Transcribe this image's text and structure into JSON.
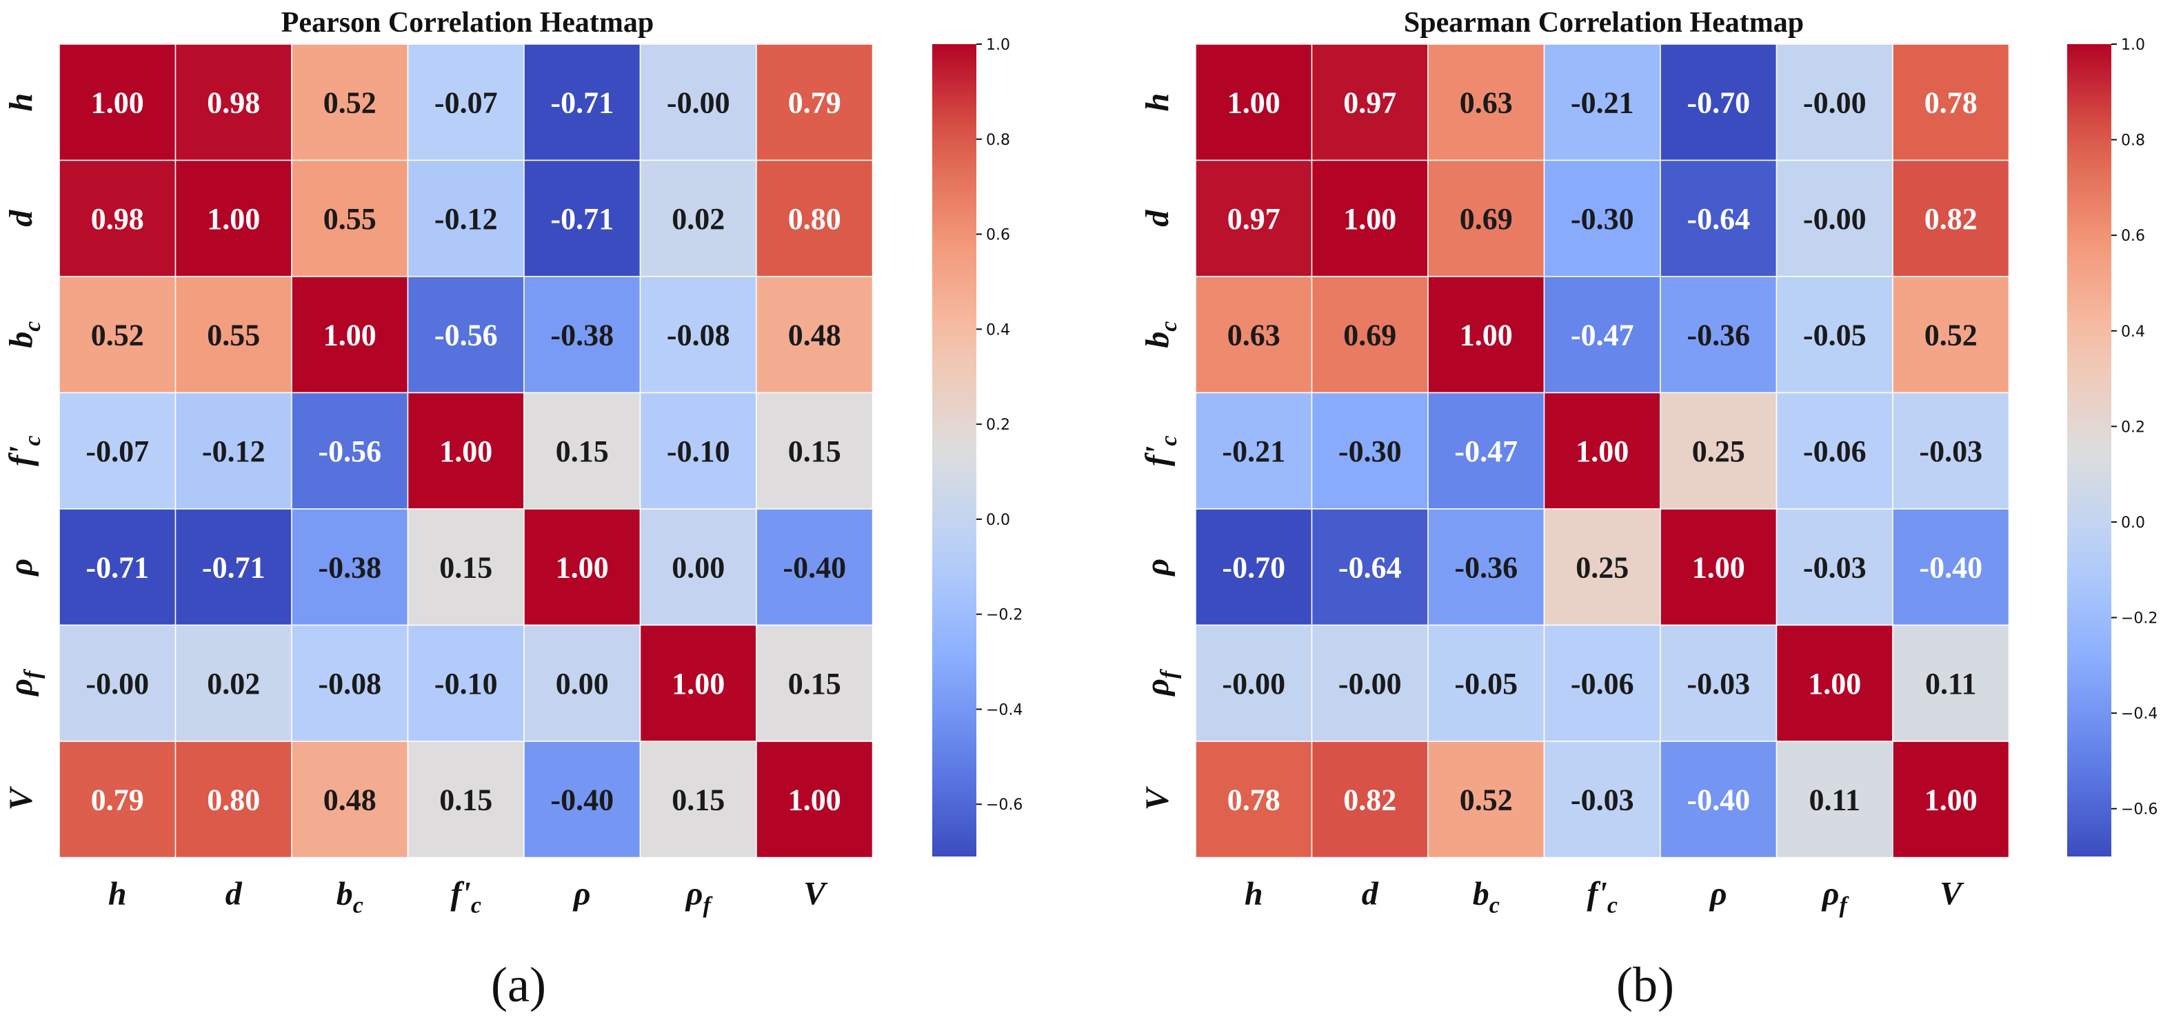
{
  "chart_data": [
    {
      "type": "heatmap",
      "title": "Pearson Correlation Heatmap",
      "caption": "(a)",
      "labels": [
        {
          "base": "h",
          "sub": ""
        },
        {
          "base": "d",
          "sub": ""
        },
        {
          "base": "b",
          "sub": "c"
        },
        {
          "base": "f'",
          "sub": "c"
        },
        {
          "base": "ρ",
          "sub": ""
        },
        {
          "base": "ρ",
          "sub": "f"
        },
        {
          "base": "V",
          "sub": ""
        }
      ],
      "cell_labels": [
        [
          "1.00",
          "0.98",
          "0.52",
          "-0.07",
          "-0.71",
          "-0.00",
          "0.79"
        ],
        [
          "0.98",
          "1.00",
          "0.55",
          "-0.12",
          "-0.71",
          "0.02",
          "0.80"
        ],
        [
          "0.52",
          "0.55",
          "1.00",
          "-0.56",
          "-0.38",
          "-0.08",
          "0.48"
        ],
        [
          "-0.07",
          "-0.12",
          "-0.56",
          "1.00",
          "0.15",
          "-0.10",
          "0.15"
        ],
        [
          "-0.71",
          "-0.71",
          "-0.38",
          "0.15",
          "1.00",
          "0.00",
          "-0.40"
        ],
        [
          "-0.00",
          "0.02",
          "-0.08",
          "-0.10",
          "0.00",
          "1.00",
          "0.15"
        ],
        [
          "0.79",
          "0.80",
          "0.48",
          "0.15",
          "-0.40",
          "0.15",
          "1.00"
        ]
      ],
      "values": [
        [
          1.0,
          0.98,
          0.52,
          -0.07,
          -0.71,
          -0.0,
          0.79
        ],
        [
          0.98,
          1.0,
          0.55,
          -0.12,
          -0.71,
          0.02,
          0.8
        ],
        [
          0.52,
          0.55,
          1.0,
          -0.56,
          -0.38,
          -0.08,
          0.48
        ],
        [
          -0.07,
          -0.12,
          -0.56,
          1.0,
          0.15,
          -0.1,
          0.15
        ],
        [
          -0.71,
          -0.71,
          -0.38,
          0.15,
          1.0,
          0.0,
          -0.4
        ],
        [
          -0.0,
          0.02,
          -0.08,
          -0.1,
          0.0,
          1.0,
          0.15
        ],
        [
          0.79,
          0.8,
          0.48,
          0.15,
          -0.4,
          0.15,
          1.0
        ]
      ],
      "colorbar": {
        "colormap": "coolwarm",
        "vmin": -0.71,
        "vmax": 1.0,
        "ticks": [
          1.0,
          0.8,
          0.6,
          0.4,
          0.2,
          0.0,
          -0.2,
          -0.4,
          -0.6
        ],
        "tick_labels": [
          "1.0",
          "0.8",
          "0.6",
          "0.4",
          "0.2",
          "0.0",
          "−0.2",
          "−0.4",
          "−0.6"
        ]
      }
    },
    {
      "type": "heatmap",
      "title": "Spearman Correlation Heatmap",
      "caption": "(b)",
      "labels": [
        {
          "base": "h",
          "sub": ""
        },
        {
          "base": "d",
          "sub": ""
        },
        {
          "base": "b",
          "sub": "c"
        },
        {
          "base": "f'",
          "sub": "c"
        },
        {
          "base": "ρ",
          "sub": ""
        },
        {
          "base": "ρ",
          "sub": "f"
        },
        {
          "base": "V",
          "sub": ""
        }
      ],
      "cell_labels": [
        [
          "1.00",
          "0.97",
          "0.63",
          "-0.21",
          "-0.70",
          "-0.00",
          "0.78"
        ],
        [
          "0.97",
          "1.00",
          "0.69",
          "-0.30",
          "-0.64",
          "-0.00",
          "0.82"
        ],
        [
          "0.63",
          "0.69",
          "1.00",
          "-0.47",
          "-0.36",
          "-0.05",
          "0.52"
        ],
        [
          "-0.21",
          "-0.30",
          "-0.47",
          "1.00",
          "0.25",
          "-0.06",
          "-0.03"
        ],
        [
          "-0.70",
          "-0.64",
          "-0.36",
          "0.25",
          "1.00",
          "-0.03",
          "-0.40"
        ],
        [
          "-0.00",
          "-0.00",
          "-0.05",
          "-0.06",
          "-0.03",
          "1.00",
          "0.11"
        ],
        [
          "0.78",
          "0.82",
          "0.52",
          "-0.03",
          "-0.40",
          "0.11",
          "1.00"
        ]
      ],
      "values": [
        [
          1.0,
          0.97,
          0.63,
          -0.21,
          -0.7,
          -0.0,
          0.78
        ],
        [
          0.97,
          1.0,
          0.69,
          -0.3,
          -0.64,
          -0.0,
          0.82
        ],
        [
          0.63,
          0.69,
          1.0,
          -0.47,
          -0.36,
          -0.05,
          0.52
        ],
        [
          -0.21,
          -0.3,
          -0.47,
          1.0,
          0.25,
          -0.06,
          -0.03
        ],
        [
          -0.7,
          -0.64,
          -0.36,
          0.25,
          1.0,
          -0.03,
          -0.4
        ],
        [
          -0.0,
          -0.0,
          -0.05,
          -0.06,
          -0.03,
          1.0,
          0.11
        ],
        [
          0.78,
          0.82,
          0.52,
          -0.03,
          -0.4,
          0.11,
          1.0
        ]
      ],
      "colorbar": {
        "colormap": "coolwarm",
        "vmin": -0.7,
        "vmax": 1.0,
        "ticks": [
          1.0,
          0.8,
          0.6,
          0.4,
          0.2,
          0.0,
          -0.2,
          -0.4,
          -0.6
        ],
        "tick_labels": [
          "1.0",
          "0.8",
          "0.6",
          "0.4",
          "0.2",
          "0.0",
          "−0.2",
          "−0.4",
          "−0.6"
        ]
      }
    }
  ]
}
